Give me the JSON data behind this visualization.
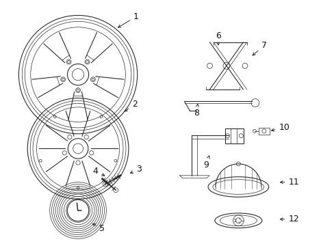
{
  "bg_color": "#ffffff",
  "line_color": "#2a2a2a",
  "text_color": "#111111",
  "fig_width": 4.89,
  "fig_height": 3.6,
  "dpi": 100
}
